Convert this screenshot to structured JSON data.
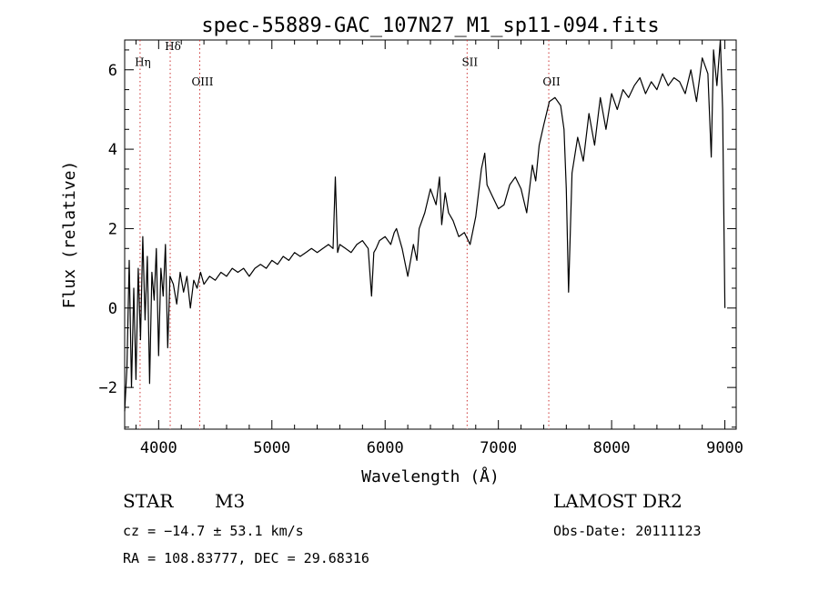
{
  "chart_data": {
    "type": "line",
    "title": "spec-55889-GAC_107N27_M1_sp11-094.fits",
    "xlabel": "Wavelength (Å)",
    "ylabel": "Flux (relative)",
    "xlim": [
      3700,
      9100
    ],
    "ylim": [
      -3.05,
      6.75
    ],
    "x_ticks": [
      4000,
      5000,
      6000,
      7000,
      8000,
      9000
    ],
    "x_tick_labels": [
      "4000",
      "5000",
      "6000",
      "7000",
      "8000",
      "9000"
    ],
    "y_ticks": [
      -2,
      0,
      2,
      4,
      6
    ],
    "y_tick_labels": [
      "−2",
      "0",
      "2",
      "4",
      "6"
    ],
    "grid": false,
    "line_color": "#000000",
    "marker_line_color": "#cc3333",
    "series": [
      {
        "values_x": [
          3700,
          3720,
          3740,
          3760,
          3780,
          3800,
          3820,
          3840,
          3860,
          3880,
          3900,
          3920,
          3940,
          3960,
          3980,
          4000,
          4020,
          4040,
          4060,
          4080,
          4100,
          4130,
          4160,
          4190,
          4220,
          4250,
          4280,
          4310,
          4340,
          4370,
          4400,
          4450,
          4500,
          4550,
          4600,
          4650,
          4700,
          4750,
          4800,
          4850,
          4900,
          4950,
          5000,
          5050,
          5100,
          5150,
          5200,
          5250,
          5300,
          5350,
          5400,
          5450,
          5500,
          5540,
          5560,
          5580,
          5600,
          5650,
          5700,
          5750,
          5800,
          5850,
          5880,
          5900,
          5920,
          5950,
          6000,
          6050,
          6080,
          6100,
          6150,
          6200,
          6250,
          6280,
          6300,
          6350,
          6400,
          6450,
          6480,
          6500,
          6530,
          6560,
          6600,
          6650,
          6700,
          6750,
          6800,
          6850,
          6880,
          6900,
          6950,
          7000,
          7050,
          7100,
          7150,
          7200,
          7250,
          7300,
          7330,
          7360,
          7400,
          7450,
          7500,
          7550,
          7580,
          7600,
          7620,
          7650,
          7700,
          7750,
          7800,
          7850,
          7900,
          7950,
          8000,
          8050,
          8100,
          8150,
          8200,
          8250,
          8300,
          8350,
          8400,
          8450,
          8500,
          8550,
          8600,
          8650,
          8700,
          8750,
          8800,
          8850,
          8880,
          8900,
          8930,
          8960,
          8980,
          9000
        ],
        "values_y": [
          -2.6,
          -1.5,
          1.2,
          -2.0,
          0.5,
          -1.8,
          1.0,
          -0.8,
          1.8,
          -0.3,
          1.3,
          -1.9,
          0.9,
          0.2,
          1.5,
          -1.2,
          1.0,
          0.3,
          1.6,
          -1.0,
          0.8,
          0.6,
          0.1,
          0.9,
          0.4,
          0.8,
          0.0,
          0.7,
          0.5,
          0.9,
          0.6,
          0.8,
          0.7,
          0.9,
          0.8,
          1.0,
          0.9,
          1.0,
          0.8,
          1.0,
          1.1,
          1.0,
          1.2,
          1.1,
          1.3,
          1.2,
          1.4,
          1.3,
          1.4,
          1.5,
          1.4,
          1.5,
          1.6,
          1.5,
          3.3,
          1.4,
          1.6,
          1.5,
          1.4,
          1.6,
          1.7,
          1.5,
          0.3,
          1.4,
          1.5,
          1.7,
          1.8,
          1.6,
          1.9,
          2.0,
          1.5,
          0.8,
          1.6,
          1.2,
          2.0,
          2.4,
          3.0,
          2.6,
          3.3,
          2.1,
          2.9,
          2.4,
          2.2,
          1.8,
          1.9,
          1.6,
          2.3,
          3.5,
          3.9,
          3.1,
          2.8,
          2.5,
          2.6,
          3.1,
          3.3,
          3.0,
          2.4,
          3.6,
          3.2,
          4.1,
          4.6,
          5.2,
          5.3,
          5.1,
          4.5,
          3.0,
          0.4,
          3.4,
          4.3,
          3.7,
          4.9,
          4.1,
          5.3,
          4.5,
          5.4,
          5.0,
          5.5,
          5.3,
          5.6,
          5.8,
          5.4,
          5.7,
          5.5,
          5.9,
          5.6,
          5.8,
          5.7,
          5.4,
          6.0,
          5.2,
          6.3,
          5.9,
          3.8,
          6.5,
          5.6,
          6.8,
          5.0,
          0.0
        ]
      }
    ],
    "lines": [
      {
        "label": "Hη",
        "x": 3836,
        "y": 6.1
      },
      {
        "label": "Hδ",
        "x": 4102,
        "y": 6.5
      },
      {
        "label": "OIII",
        "x": 4363,
        "y": 5.6
      },
      {
        "label": "SII",
        "x": 6724,
        "y": 6.1
      },
      {
        "label": "OII",
        "x": 7445,
        "y": 5.6
      }
    ]
  },
  "info": {
    "class_label": "STAR",
    "subclass": "M3",
    "survey": "LAMOST DR2",
    "cz": "cz = −14.7 ± 53.1 km/s",
    "obs_date": "Obs-Date: 20111123",
    "coords": "RA = 108.83777, DEC =  29.68316"
  }
}
